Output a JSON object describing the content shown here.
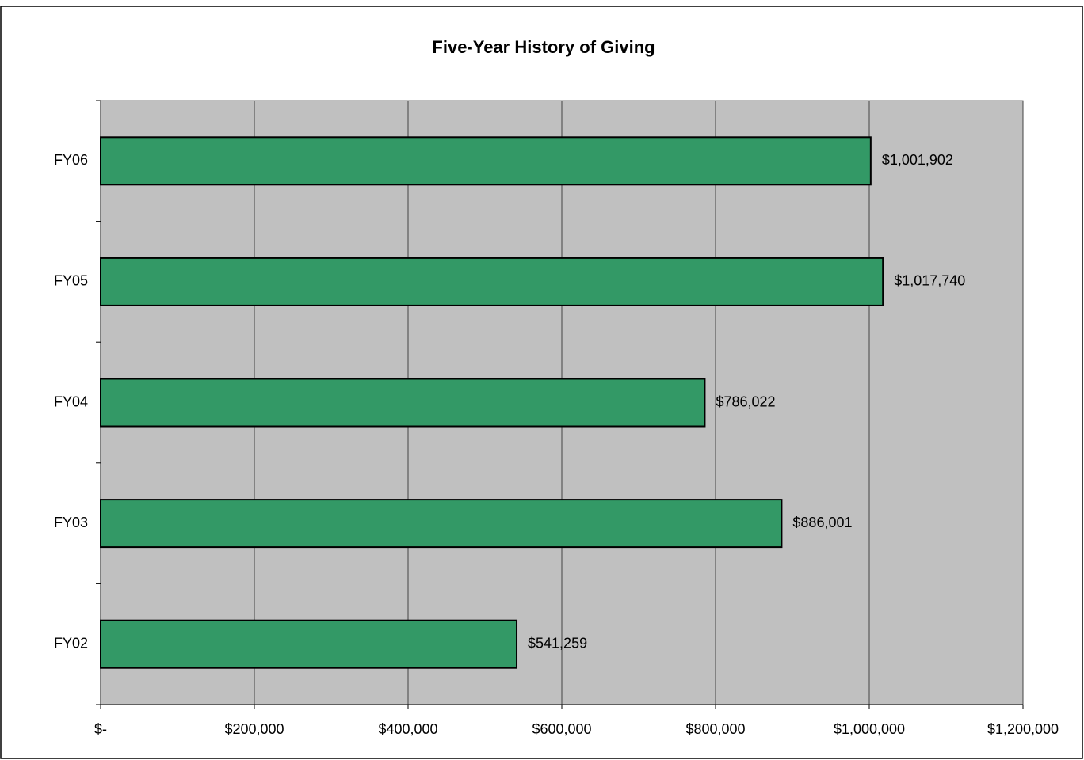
{
  "chart_data": {
    "type": "bar",
    "orientation": "horizontal",
    "title": "Five-Year History of Giving",
    "categories": [
      "FY06",
      "FY05",
      "FY04",
      "FY03",
      "FY02"
    ],
    "values": [
      1001902,
      1017740,
      786022,
      886001,
      541259
    ],
    "value_labels": [
      "$1,001,902",
      "$1,017,740",
      "$786,022",
      "$886,001",
      "$541,259"
    ],
    "color": "#339966",
    "xlim": [
      0,
      1200000
    ],
    "xticks": [
      {
        "value": 0,
        "label": "$-"
      },
      {
        "value": 200000,
        "label": "$200,000"
      },
      {
        "value": 400000,
        "label": "$400,000"
      },
      {
        "value": 600000,
        "label": "$600,000"
      },
      {
        "value": 800000,
        "label": "$800,000"
      },
      {
        "value": 1000000,
        "label": "$1,000,000"
      },
      {
        "value": 1200000,
        "label": "$1,200,000"
      }
    ],
    "grid": true
  }
}
